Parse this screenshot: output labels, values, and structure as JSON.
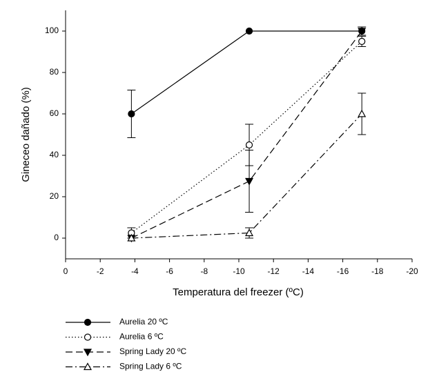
{
  "chart_data": {
    "type": "line",
    "x_label": "Temperatura del freezer (ºC)",
    "y_label": "Gineceo dañado (%)",
    "x": [
      -3.8,
      -10.6,
      -17.1
    ],
    "series": [
      {
        "name": "Aurelia 20 ºC",
        "color": "#000000",
        "line_style": "solid",
        "marker": "circle",
        "marker_fill": "filled",
        "values": [
          60,
          100,
          100
        ],
        "errors": [
          11.5,
          null,
          null
        ]
      },
      {
        "name": "Aurelia 6 ºC",
        "color": "#000000",
        "line_style": "dotted",
        "marker": "circle",
        "marker_fill": "open",
        "values": [
          2.5,
          45,
          95
        ],
        "errors": [
          2.5,
          10,
          2.5
        ]
      },
      {
        "name": "Spring Lady 20 ºC",
        "color": "#000000",
        "line_style": "dashed",
        "marker": "triangle-down",
        "marker_fill": "filled",
        "values": [
          0,
          27.5,
          100
        ],
        "errors": [
          null,
          15,
          2
        ]
      },
      {
        "name": "Spring Lady 6 ºC",
        "color": "#000000",
        "line_style": "dashdot",
        "marker": "triangle-up",
        "marker_fill": "open",
        "values": [
          0,
          2.5,
          60
        ],
        "errors": [
          null,
          2.5,
          10
        ]
      }
    ],
    "xlim": [
      0,
      -20
    ],
    "xticks": [
      0,
      -2,
      -4,
      -6,
      -8,
      -10,
      -12,
      -14,
      -16,
      -18,
      -20
    ],
    "ylim": [
      -10,
      110
    ],
    "yticks": [
      0,
      20,
      40,
      60,
      80,
      100
    ],
    "grid": false,
    "legend": "bottom-left"
  }
}
